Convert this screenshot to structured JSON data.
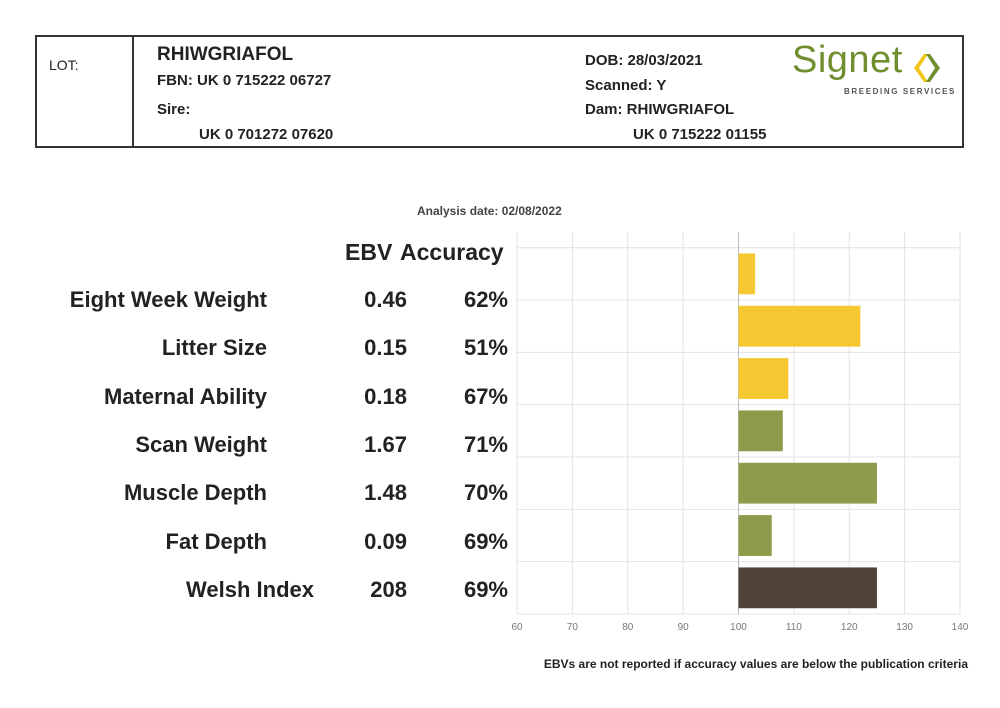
{
  "header": {
    "lot_label": "LOT:",
    "name": "RHIWGRIAFOL",
    "fbn": "FBN: UK 0 715222 06727",
    "sire_label": "Sire:",
    "sire_id": "UK 0 701272 07620",
    "dob": "DOB: 28/03/2021",
    "scanned": "Scanned: Y",
    "dam": "Dam: RHIWGRIAFOL",
    "dam_id": "UK 0 715222 01155"
  },
  "logo": {
    "text": "Signet",
    "subtext": "BREEDING SERVICES",
    "color": "#6f8f2e",
    "mark_color": "#f0c419"
  },
  "analysis_date": "Analysis date: 02/08/2022",
  "columns": {
    "ebv_header": "EBV",
    "accuracy_header": "Accuracy"
  },
  "rows": [
    {
      "label": "Eight Week Weight",
      "ebv": "0.46",
      "accuracy": "62%"
    },
    {
      "label": "Litter Size",
      "ebv": "0.15",
      "accuracy": "51%"
    },
    {
      "label": "Maternal Ability",
      "ebv": "0.18",
      "accuracy": "67%"
    },
    {
      "label": "Scan Weight",
      "ebv": "1.67",
      "accuracy": "71%"
    },
    {
      "label": "Muscle Depth",
      "ebv": "1.48",
      "accuracy": "70%"
    },
    {
      "label": "Fat Depth",
      "ebv": "0.09",
      "accuracy": "69%"
    },
    {
      "label": "Welsh Index",
      "ebv": "208",
      "accuracy": "69%"
    }
  ],
  "chart_data": {
    "type": "bar",
    "orientation": "horizontal",
    "baseline": 100,
    "xlim": [
      60,
      140
    ],
    "x_ticks": [
      "60",
      "70",
      "80",
      "90",
      "100",
      "110",
      "120",
      "130",
      "140"
    ],
    "grid": true,
    "categories": [
      "Eight Week Weight",
      "Litter Size",
      "Maternal Ability",
      "Scan Weight",
      "Muscle Depth",
      "Fat Depth",
      "Welsh Index"
    ],
    "values": [
      103,
      122,
      109,
      108,
      125,
      106,
      125
    ],
    "colors": [
      "#f5c832",
      "#f5c832",
      "#f5c832",
      "#8c9c4a",
      "#8c9c4a",
      "#8c9c4a",
      "#4e4236"
    ]
  },
  "footnote": "EBVs are not reported if accuracy values are below the publication criteria"
}
